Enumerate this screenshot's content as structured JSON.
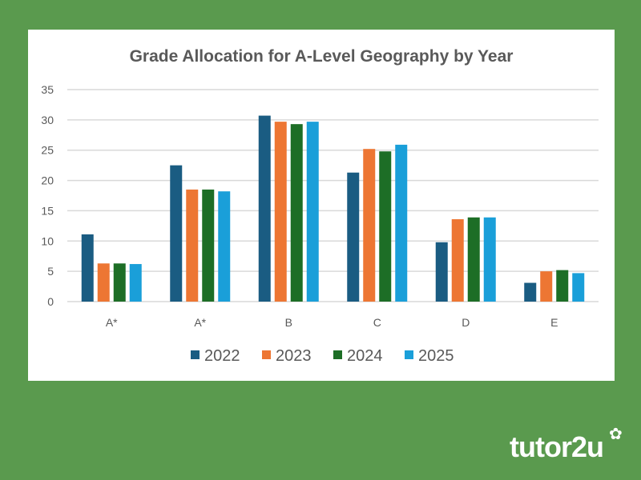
{
  "chart_data": {
    "type": "bar",
    "title": "Grade Allocation for A-Level Geography by Year",
    "categories": [
      "A*",
      "A*",
      "B",
      "C",
      "D",
      "E"
    ],
    "series": [
      {
        "name": "2022",
        "color": "#1a5c82",
        "values": [
          11.1,
          22.5,
          30.7,
          21.3,
          9.8,
          3.1
        ]
      },
      {
        "name": "2023",
        "color": "#ed7633",
        "values": [
          6.3,
          18.5,
          29.7,
          25.2,
          13.6,
          5.0
        ]
      },
      {
        "name": "2024",
        "color": "#1d6e26",
        "values": [
          6.3,
          18.5,
          29.3,
          24.8,
          13.9,
          5.2
        ]
      },
      {
        "name": "2025",
        "color": "#1a9fd9",
        "values": [
          6.2,
          18.2,
          29.7,
          25.9,
          13.9,
          4.7
        ]
      }
    ],
    "ylim": [
      0,
      35
    ],
    "yticks": [
      0,
      5,
      10,
      15,
      20,
      25,
      30,
      35
    ],
    "grid": true,
    "legend": "bottom"
  },
  "brand": {
    "logo_text": "tutor2u"
  }
}
